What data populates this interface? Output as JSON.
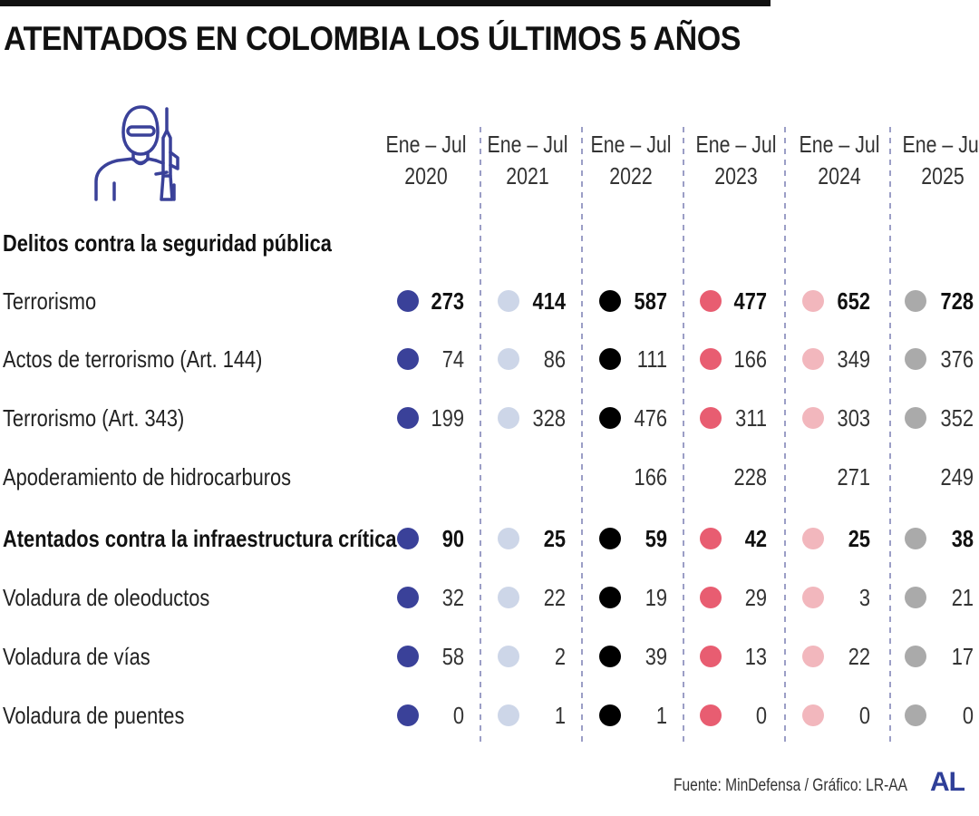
{
  "header": {
    "title": "ATENTADOS EN COLOMBIA LOS ÚLTIMOS 5 AÑOS"
  },
  "footer": {
    "source": "Fuente: MinDefensa / Gráfico: LR-AA",
    "logo": "AL"
  },
  "icon": "masked-soldier-with-rifle-icon",
  "chart_data": {
    "type": "table",
    "title": "ATENTADOS EN COLOMBIA LOS ÚLTIMOS 5 AÑOS",
    "columns": [
      {
        "line1": "Ene – Jul",
        "line2": "2020",
        "color": "#3a4199"
      },
      {
        "line1": "Ene – Jul",
        "line2": "2021",
        "color": "#cdd6e8"
      },
      {
        "line1": "Ene – Jul",
        "line2": "2022",
        "color": "#000000"
      },
      {
        "line1": "Ene – Jul",
        "line2": "2023",
        "color": "#e85d71"
      },
      {
        "line1": "Ene – Jul",
        "line2": "2024",
        "color": "#f2b7bd"
      },
      {
        "line1": "Ene – Jul",
        "line2": "2025",
        "color": "#aaaaaa"
      }
    ],
    "rows": [
      {
        "label": "Delitos contra la seguridad pública",
        "bold": true,
        "dots": false,
        "values": [
          "",
          "",
          "",
          "",
          "",
          ""
        ]
      },
      {
        "label": "Terrorismo",
        "bold": false,
        "bold_values": true,
        "dots": true,
        "values": [
          "273",
          "414",
          "587",
          "477",
          "652",
          "728"
        ]
      },
      {
        "label": "Actos de terrorismo (Art. 144)",
        "bold": false,
        "dots": true,
        "values": [
          "74",
          "86",
          "111",
          "166",
          "349",
          "376"
        ]
      },
      {
        "label": "Terrorismo (Art. 343)",
        "bold": false,
        "dots": true,
        "values": [
          "199",
          "328",
          "476",
          "311",
          "303",
          "352"
        ]
      },
      {
        "label": "Apoderamiento de hidrocarburos",
        "bold": false,
        "dots": false,
        "values": [
          "",
          "",
          "166",
          "228",
          "271",
          "249"
        ]
      },
      {
        "label": "Atentados contra la infraestructura crítica",
        "bold": true,
        "bold_values": true,
        "dots": true,
        "values": [
          "90",
          "25",
          "59",
          "42",
          "25",
          "38"
        ]
      },
      {
        "label": "Voladura de oleoductos",
        "bold": false,
        "dots": true,
        "values": [
          "32",
          "22",
          "19",
          "29",
          "3",
          "21"
        ]
      },
      {
        "label": "Voladura de vías",
        "bold": false,
        "dots": true,
        "values": [
          "58",
          "2",
          "39",
          "13",
          "22",
          "17"
        ]
      },
      {
        "label": "Voladura de puentes",
        "bold": false,
        "dots": true,
        "values": [
          "0",
          "1",
          "1",
          "0",
          "0",
          "0"
        ]
      }
    ]
  }
}
